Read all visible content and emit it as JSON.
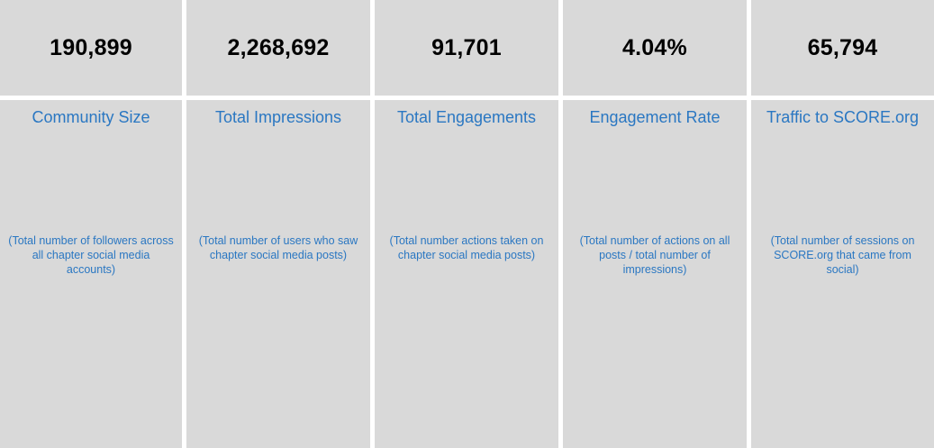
{
  "metrics": [
    {
      "value": "190,899",
      "title": "Community Size",
      "description": "(Total number of followers across all chapter social media accounts)"
    },
    {
      "value": "2,268,692",
      "title": "Total Impressions",
      "description": "(Total number of users who saw chapter social media posts)"
    },
    {
      "value": "91,701",
      "title": "Total Engagements",
      "description": "(Total number actions taken on chapter social media posts)"
    },
    {
      "value": "4.04%",
      "title": "Engagement Rate",
      "description": "(Total number of actions on all posts / total number of impressions)"
    },
    {
      "value": "65,794",
      "title": "Traffic to SCORE.org",
      "description": "(Total number of sessions on SCORE.org that came from social)"
    }
  ],
  "colors": {
    "cell_background": "#d9d9d9",
    "label_blue": "#2a77c2",
    "value_text": "#000000",
    "divider": "#ffffff"
  }
}
